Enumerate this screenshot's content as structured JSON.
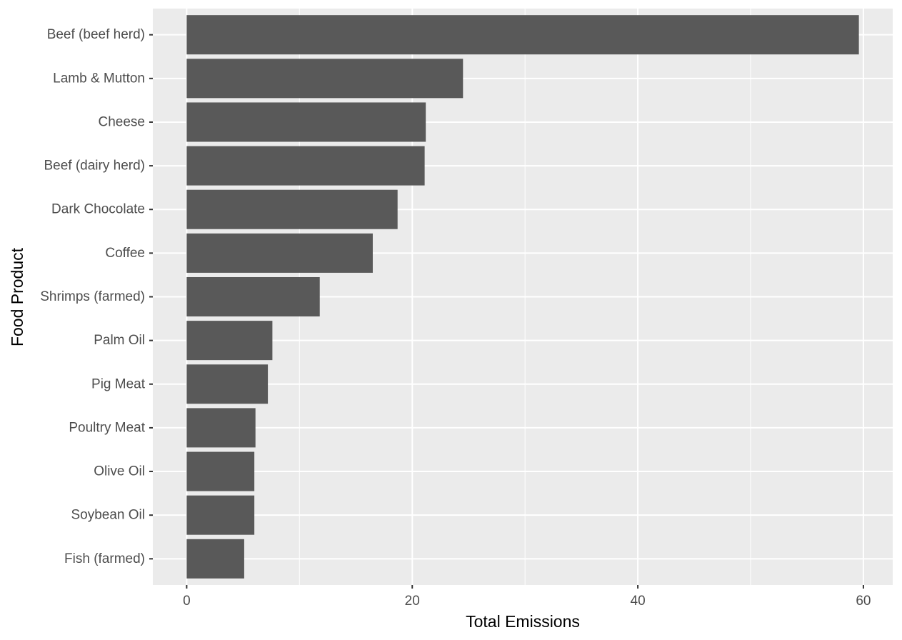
{
  "chart_data": {
    "type": "bar",
    "orientation": "horizontal",
    "categories": [
      "Beef (beef herd)",
      "Lamb & Mutton",
      "Cheese",
      "Beef (dairy herd)",
      "Dark Chocolate",
      "Coffee",
      "Shrimps (farmed)",
      "Palm Oil",
      "Pig Meat",
      "Poultry Meat",
      "Olive Oil",
      "Soybean Oil",
      "Fish (farmed)"
    ],
    "values": [
      59.6,
      24.5,
      21.2,
      21.1,
      18.7,
      16.5,
      11.8,
      7.6,
      7.2,
      6.1,
      6.0,
      6.0,
      5.1
    ],
    "xlabel": "Total Emissions",
    "ylabel": "Food Product",
    "xlim": [
      -3.0,
      62.6
    ],
    "xticks": [
      0,
      20,
      40,
      60
    ],
    "grid": true,
    "colors": {
      "panel": "#ebebeb",
      "grid": "#ffffff",
      "bar": "#595959",
      "tick_text": "#4d4d4d",
      "tick_mark": "#333333",
      "title_text": "#000000"
    }
  }
}
